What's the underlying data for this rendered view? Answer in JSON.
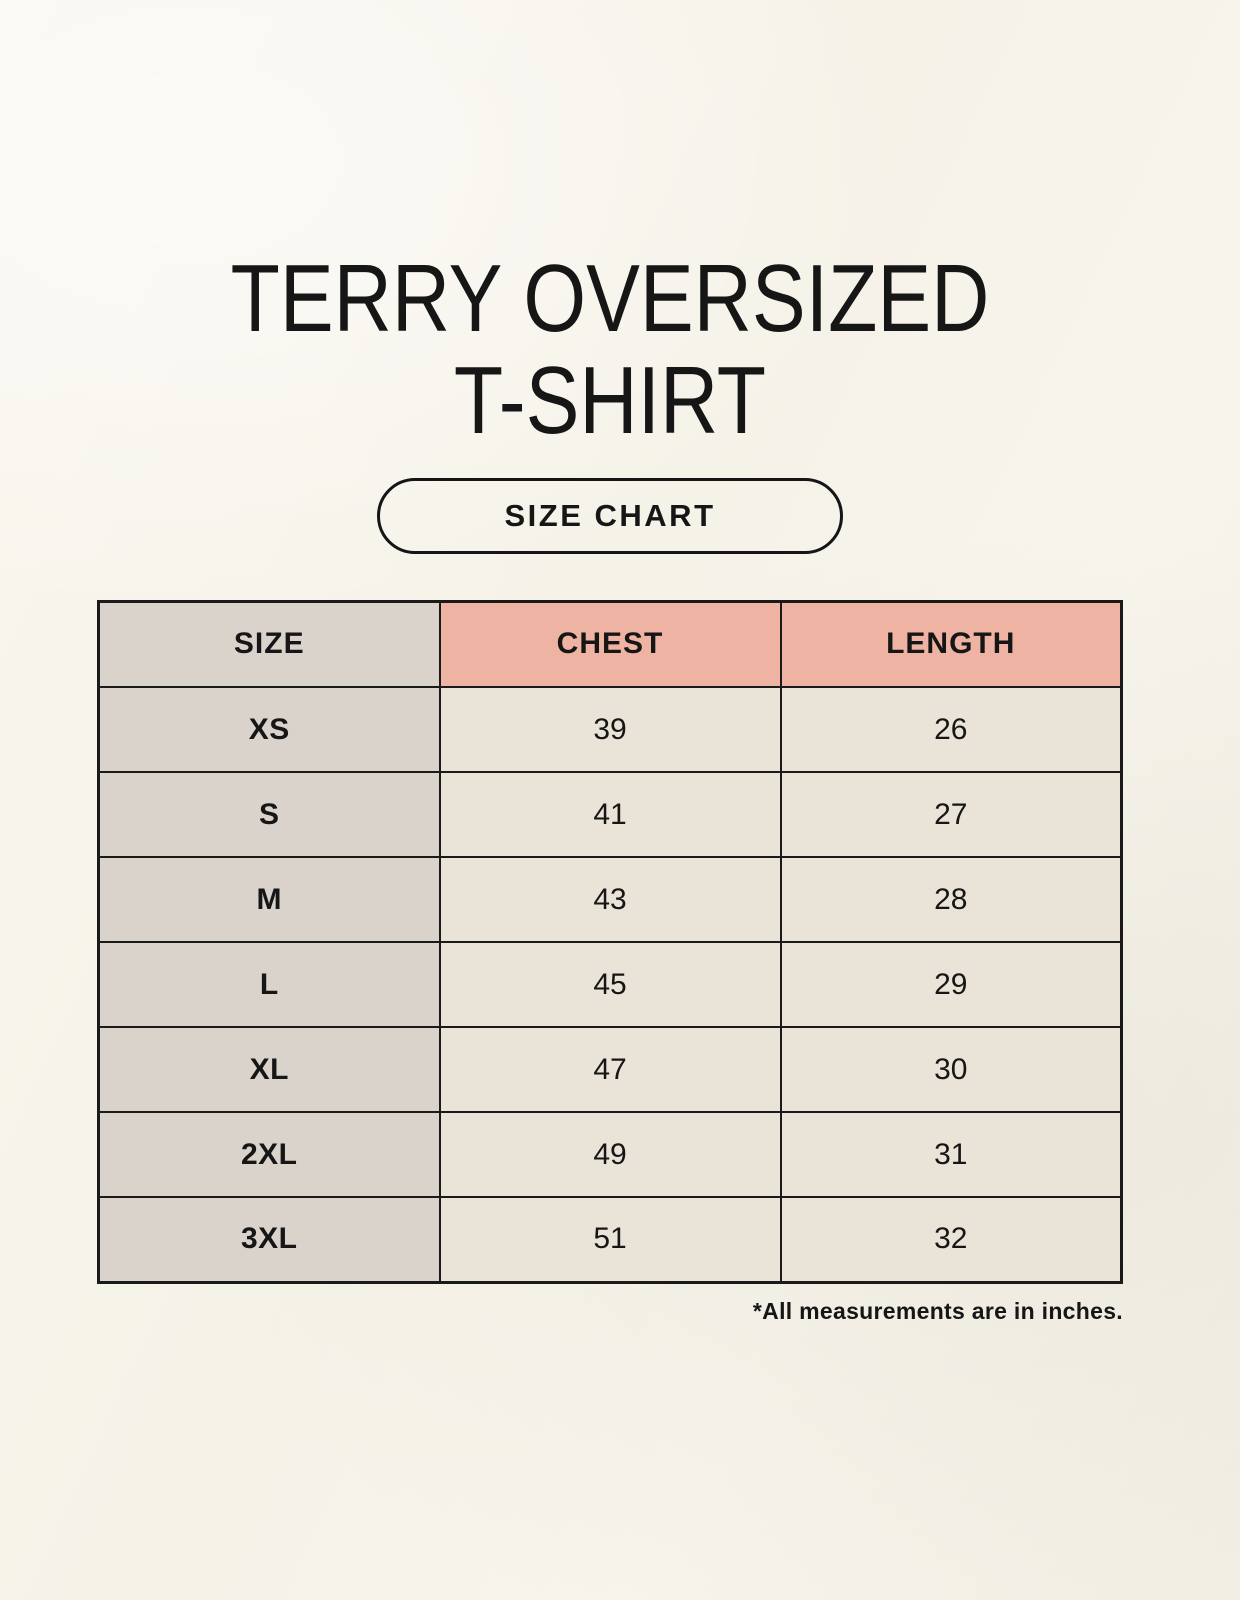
{
  "page": {
    "title_line1": "TERRY OVERSIZED",
    "title_line2": "T-SHIRT",
    "size_chart_label": "SIZE CHART",
    "footnote": "*All measurements are in inches."
  },
  "colors": {
    "background": "#f6f3ea",
    "header_pink": "#eeb3a2",
    "label_gray": "#d9d3cc",
    "cell_beige": "#eae4d8",
    "border_black": "#1a1a1a"
  },
  "chart_data": {
    "type": "table",
    "title": "TERRY OVERSIZED T-SHIRT",
    "columns": [
      "SIZE",
      "CHEST",
      "LENGTH"
    ],
    "rows": [
      [
        "XS",
        "39",
        "26"
      ],
      [
        "S",
        "41",
        "27"
      ],
      [
        "M",
        "43",
        "28"
      ],
      [
        "L",
        "45",
        "29"
      ],
      [
        "XL",
        "47",
        "30"
      ],
      [
        "2XL",
        "49",
        "31"
      ],
      [
        "3XL",
        "51",
        "32"
      ]
    ],
    "units": "inches",
    "note": "*All measurements are in inches."
  }
}
